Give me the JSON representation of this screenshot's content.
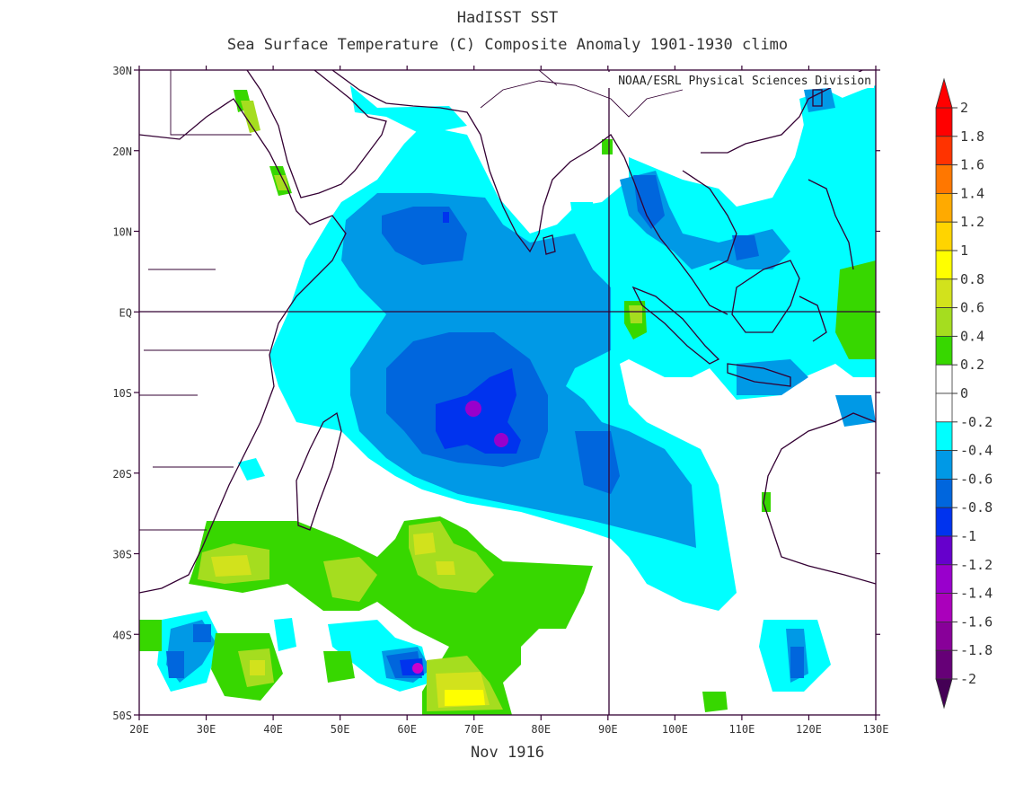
{
  "title": "HadISST SST",
  "subtitle": "Sea Surface Temperature (C) Composite Anomaly 1901-1930 climo",
  "credit": "NOAA/ESRL Physical Sciences Division",
  "footer": "Nov 1916",
  "map": {
    "lon_range": [
      20,
      130
    ],
    "lat_range": [
      -50,
      30
    ],
    "lon_ticks": [
      "20E",
      "30E",
      "40E",
      "50E",
      "60E",
      "70E",
      "80E",
      "90E",
      "100E",
      "110E",
      "120E",
      "130E"
    ],
    "lat_ticks": [
      "30N",
      "20N",
      "10N",
      "EQ",
      "10S",
      "20S",
      "30S",
      "40S",
      "50S"
    ],
    "reference_lines": [
      "EQ",
      "90E"
    ]
  },
  "colorbar": {
    "labels": [
      "2",
      "1.8",
      "1.6",
      "1.4",
      "1.2",
      "1",
      "0.8",
      "0.6",
      "0.4",
      "0.2",
      "0",
      "-0.2",
      "-0.4",
      "-0.6",
      "-0.8",
      "-1",
      "-1.2",
      "-1.4",
      "-1.6",
      "-1.8",
      "-2"
    ],
    "colors": [
      "#ff0000",
      "#ff3300",
      "#ff7700",
      "#ffaa00",
      "#ffd400",
      "#ffff00",
      "#d2e21c",
      "#a5dd1f",
      "#37d700",
      "#ffffff",
      "#ffffff",
      "#00ffff",
      "#0099e6",
      "#0066dd",
      "#0033ee",
      "#6600cc",
      "#9900cc",
      "#aa00bb",
      "#880099",
      "#660077"
    ]
  }
}
